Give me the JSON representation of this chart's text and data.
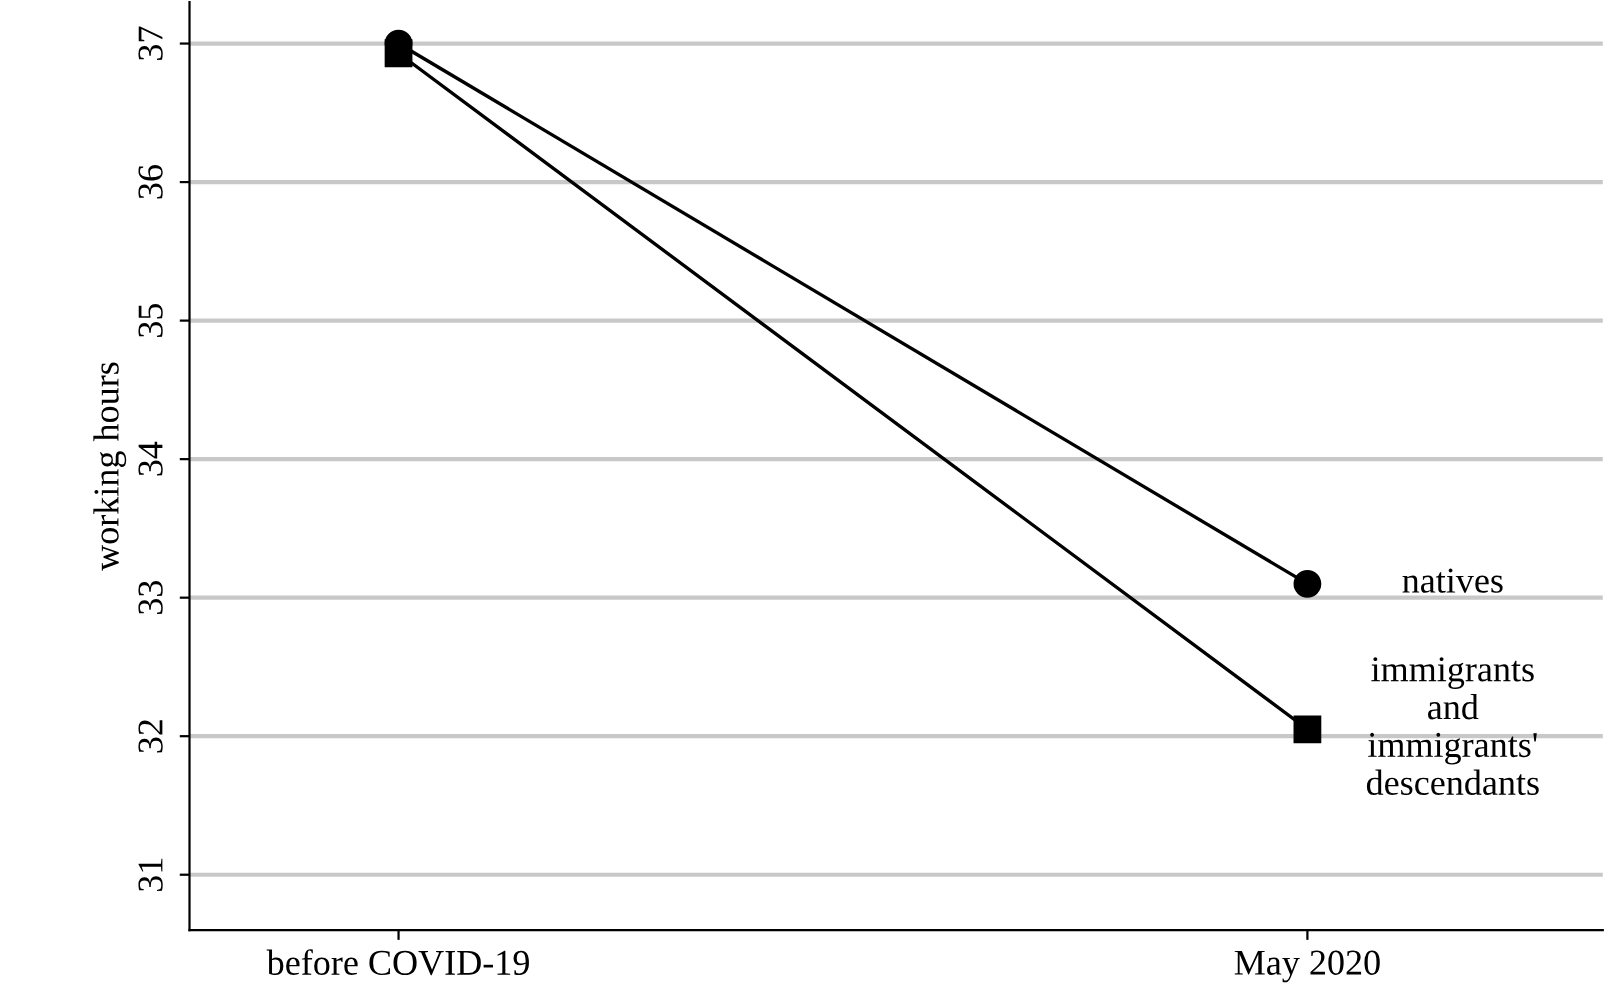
{
  "chart_data": {
    "type": "line",
    "ylabel": "working hours",
    "categories": [
      "before COVID-19",
      "May 2020"
    ],
    "series": [
      {
        "name": "natives",
        "color": "#000000",
        "marker": "circle",
        "values": [
          37.0,
          33.1
        ]
      },
      {
        "name": "immigrants\nand\nimmigrants'\ndescendants",
        "color": "#000000",
        "marker": "square",
        "values": [
          36.93,
          32.05
        ]
      }
    ],
    "ylim": [
      30.6,
      37.3
    ],
    "yticks": [
      31,
      32,
      33,
      34,
      35,
      36,
      37
    ],
    "grid": "y",
    "legend": false,
    "line_style": "solid"
  }
}
